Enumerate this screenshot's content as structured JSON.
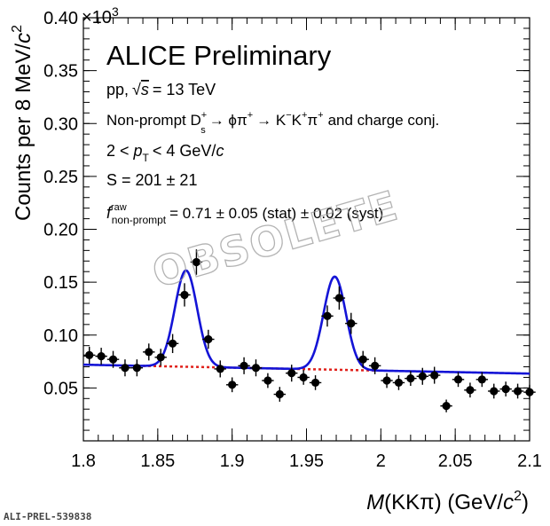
{
  "chart_data": {
    "type": "scatter",
    "title": "ALICE Preliminary",
    "xlabel_parts": [
      "M",
      "(KKπ) (GeV/",
      "c",
      "2",
      ")"
    ],
    "ylabel_parts": [
      "Counts per 8 MeV/",
      "c",
      "2"
    ],
    "y_multiplier": "×10",
    "y_multiplier_exp": "3",
    "xlim": [
      1.8,
      2.1
    ],
    "ylim": [
      0.0,
      0.4
    ],
    "x_ticks": [
      1.8,
      1.85,
      1.9,
      1.95,
      2.0,
      2.05,
      2.1
    ],
    "x_tick_labels": [
      "1.8",
      "1.85",
      "1.9",
      "1.95",
      "2",
      "2.05",
      "2.1"
    ],
    "y_ticks": [
      0.05,
      0.1,
      0.15,
      0.2,
      0.25,
      0.3,
      0.35,
      0.4
    ],
    "y_tick_labels": [
      "0.05",
      "0.10",
      "0.15",
      "0.20",
      "0.25",
      "0.30",
      "0.35",
      "0.40"
    ],
    "annotations": {
      "collision": "pp,",
      "energy": "= 13 TeV",
      "sqrt_symbol": "√",
      "s_symbol": "s",
      "decay_prefix": "Non-prompt D",
      "decay_sup": "+",
      "decay_sub": "s",
      "decay_arrow1": "→ ϕπ",
      "decay_sup2": "+",
      "decay_arrow2": "→ K",
      "decay_sup3": "−",
      "decay_k2": "K",
      "decay_sup4": "+",
      "decay_pi": "π",
      "decay_sup5": "+",
      "decay_suffix": "and charge conj.",
      "pt_prefix": "2 <",
      "pt_p": "p",
      "pt_sub": "T",
      "pt_suffix": "< 4 GeV/",
      "pt_c": "c",
      "signal": "S = 201 ± 21",
      "f_symbol": "f",
      "f_sup": "raw",
      "f_sub": "non-prompt",
      "f_value": "= 0.71 ± 0.05 (stat) ± 0.02 (syst)"
    },
    "watermark": "OBSOLETE",
    "series": [
      {
        "type": "errorbar",
        "x": [
          1.804,
          1.812,
          1.82,
          1.828,
          1.836,
          1.844,
          1.852,
          1.86,
          1.868,
          1.876,
          1.884,
          1.892,
          1.9,
          1.908,
          1.916,
          1.924,
          1.932,
          1.94,
          1.948,
          1.956,
          1.964,
          1.972,
          1.98,
          1.988,
          1.996,
          2.004,
          2.012,
          2.02,
          2.028,
          2.036,
          2.044,
          2.052,
          2.06,
          2.068,
          2.076,
          2.084,
          2.092,
          2.1
        ],
        "y": [
          0.081,
          0.08,
          0.077,
          0.069,
          0.069,
          0.084,
          0.079,
          0.092,
          0.138,
          0.169,
          0.096,
          0.068,
          0.053,
          0.071,
          0.069,
          0.057,
          0.044,
          0.064,
          0.06,
          0.055,
          0.118,
          0.135,
          0.111,
          0.077,
          0.071,
          0.057,
          0.055,
          0.059,
          0.061,
          0.062,
          0.033,
          0.058,
          0.048,
          0.058,
          0.047,
          0.049,
          0.047,
          0.046
        ],
        "yerr": [
          0.008,
          0.008,
          0.008,
          0.008,
          0.008,
          0.008,
          0.008,
          0.009,
          0.011,
          0.012,
          0.009,
          0.008,
          0.007,
          0.008,
          0.008,
          0.007,
          0.007,
          0.008,
          0.007,
          0.007,
          0.01,
          0.011,
          0.01,
          0.008,
          0.008,
          0.007,
          0.007,
          0.007,
          0.008,
          0.008,
          0.006,
          0.007,
          0.007,
          0.007,
          0.007,
          0.007,
          0.007,
          0.007
        ]
      },
      {
        "type": "line",
        "role": "total-fit",
        "color": "#1414d6",
        "model": {
          "bkg_a": 0.072,
          "bkg_b": 0.078,
          "x0": 1.8,
          "peak1_mean": 1.869,
          "peak1_amp": 0.091,
          "peak2_mean": 1.969,
          "peak2_amp": 0.088,
          "sigma": 0.0075
        }
      },
      {
        "type": "line",
        "role": "background-fit",
        "color": "#e0201a",
        "dashed": true,
        "model": {
          "bkg_a": 0.072,
          "bkg_b": 0.078,
          "x0": 1.8,
          "x_range": [
            1.84,
            2.0
          ]
        }
      }
    ]
  },
  "footer": "ALI-PREL-539838"
}
